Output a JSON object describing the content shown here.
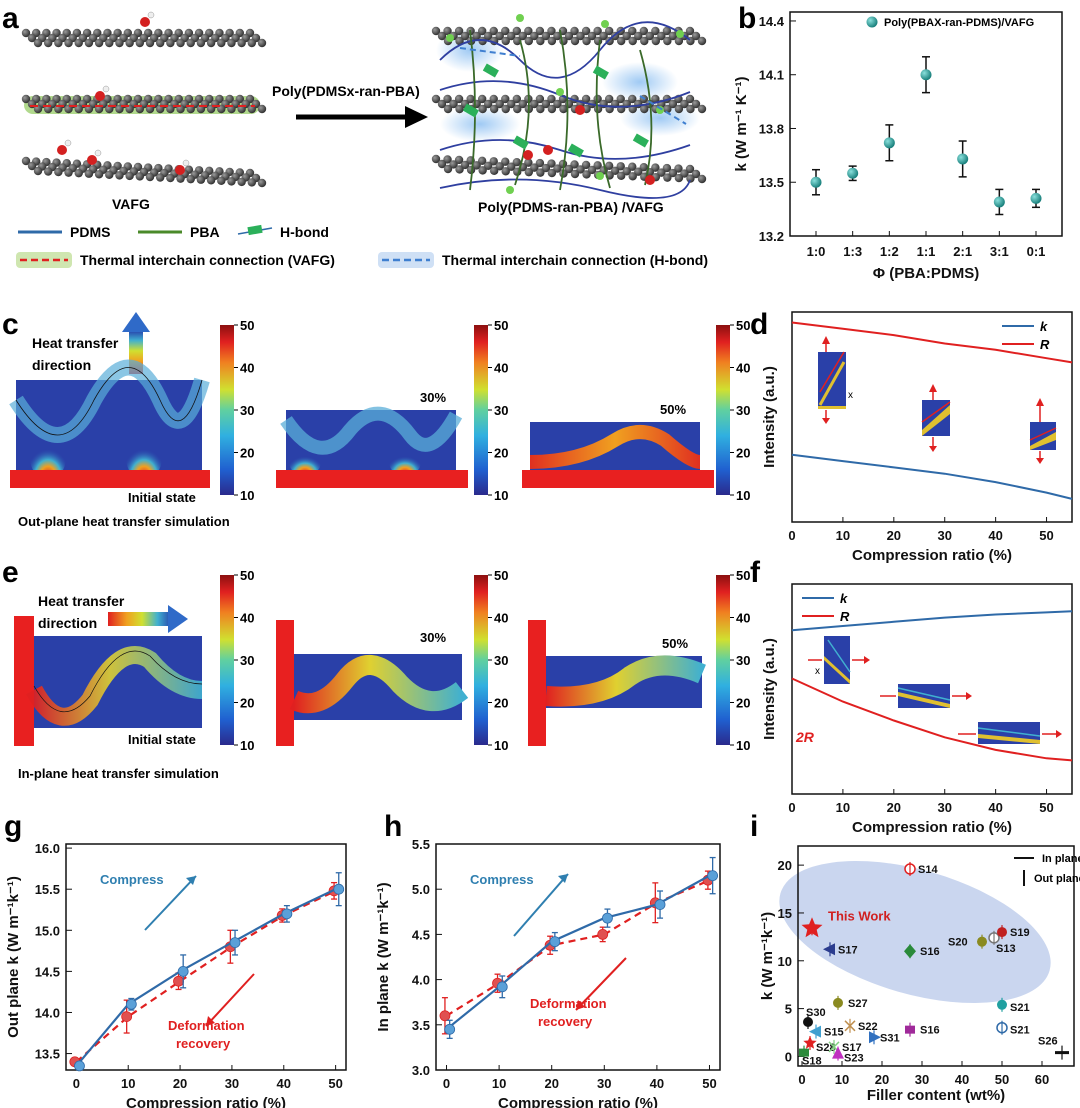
{
  "panel_labels": [
    "a",
    "b",
    "c",
    "d",
    "e",
    "f",
    "g",
    "h",
    "i"
  ],
  "colors": {
    "blue": "#2f6aa8",
    "teal": "#1a8c8a",
    "red": "#e02020",
    "green": "#4a8a2a",
    "navy": "#2b4a9e"
  },
  "panel_a": {
    "arrow_label": "Poly(PDMSx-ran-PBA)",
    "left_caption": "VAFG",
    "right_caption": "Poly(PDMS-ran-PBA) /VAFG",
    "legend": [
      "PDMS",
      "PBA",
      "H-bond",
      "Thermal interchain connection (VAFG)",
      "Thermal interchain connection (H-bond)"
    ]
  },
  "panel_c": {
    "heat_label_1": "Heat transfer",
    "heat_label_2": "direction",
    "state_labels": [
      "Initial state",
      "30%",
      "50%"
    ],
    "caption": "Out-plane heat transfer simulation",
    "colorbar_ticks": [
      "50",
      "40",
      "30",
      "20",
      "10"
    ]
  },
  "panel_e": {
    "heat_label_1": "Heat transfer",
    "heat_label_2": "direction",
    "state_labels": [
      "Initial state",
      "30%",
      "50%"
    ],
    "caption": "In-plane heat transfer simulation",
    "colorbar_ticks": [
      "50",
      "40",
      "30",
      "20",
      "10"
    ]
  },
  "chart_data": [
    {
      "panel": "b",
      "type": "scatter",
      "categories": [
        "1:0",
        "1:3",
        "1:2",
        "1:1",
        "2:1",
        "3:1",
        "0:1"
      ],
      "series": [
        {
          "name": "Poly(PBAX-ran-PDMS)/VAFG",
          "values": [
            13.5,
            13.55,
            13.72,
            14.1,
            13.63,
            13.39,
            13.41
          ],
          "errors": [
            0.07,
            0.04,
            0.1,
            0.1,
            0.1,
            0.07,
            0.05
          ]
        }
      ],
      "xlabel": "Φ (PBA:PDMS)",
      "ylabel": "k (W m⁻¹ K⁻¹)",
      "ylim": [
        13.2,
        14.45
      ],
      "yticks": [
        "13.2",
        "13.5",
        "13.8",
        "14.1",
        "14.4"
      ],
      "legend_position": "top-right"
    },
    {
      "panel": "d",
      "type": "line",
      "x": [
        0,
        10,
        20,
        30,
        40,
        50,
        55
      ],
      "series": [
        {
          "name": "k",
          "values": [
            0.32,
            0.29,
            0.26,
            0.23,
            0.19,
            0.14,
            0.11
          ]
        },
        {
          "name": "R",
          "values": [
            0.95,
            0.92,
            0.89,
            0.85,
            0.82,
            0.78,
            0.76
          ]
        }
      ],
      "xlabel": "Compression ratio (%)",
      "ylabel": "Intensity (a.u.)",
      "xticks": [
        "0",
        "10",
        "20",
        "30",
        "40",
        "50"
      ],
      "xlim": [
        0,
        55
      ],
      "ylim": [
        0,
        1
      ],
      "legend_position": "top-right"
    },
    {
      "panel": "f",
      "type": "line",
      "x": [
        0,
        10,
        20,
        30,
        40,
        50,
        55
      ],
      "series": [
        {
          "name": "k",
          "values": [
            0.78,
            0.8,
            0.82,
            0.84,
            0.855,
            0.865,
            0.87
          ]
        },
        {
          "name": "R",
          "values": [
            0.55,
            0.44,
            0.35,
            0.27,
            0.21,
            0.17,
            0.16
          ]
        }
      ],
      "r_annotation": "2R",
      "xlabel": "Compression ratio (%)",
      "ylabel": "Intensity (a.u.)",
      "xticks": [
        "0",
        "10",
        "20",
        "30",
        "40",
        "50"
      ],
      "xlim": [
        0,
        55
      ],
      "ylim": [
        0,
        1
      ],
      "legend_position": "top-left"
    },
    {
      "panel": "g",
      "type": "line",
      "x": [
        0,
        10,
        20,
        30,
        40,
        50
      ],
      "series": [
        {
          "name": "Compress",
          "values": [
            13.35,
            14.1,
            14.5,
            14.85,
            15.2,
            15.5
          ],
          "errors": [
            0.04,
            0.07,
            0.2,
            0.15,
            0.1,
            0.2
          ]
        },
        {
          "name": "Deformation recovery",
          "values": [
            13.4,
            13.95,
            14.38,
            14.8,
            15.18,
            15.48
          ],
          "errors": [
            0.04,
            0.2,
            0.1,
            0.2,
            0.08,
            0.1
          ]
        }
      ],
      "annotations": [
        "Compress",
        "Deformation",
        "recovery"
      ],
      "xlabel": "Compression ratio (%)",
      "ylabel": "Out plane k (W m⁻¹k⁻¹)",
      "xticks": [
        "0",
        "10",
        "20",
        "30",
        "40",
        "50"
      ],
      "yticks": [
        "13.5",
        "14.0",
        "14.5",
        "15.0",
        "15.5",
        "16.0"
      ],
      "xlim": [
        -2,
        52
      ],
      "ylim": [
        13.3,
        16.05
      ]
    },
    {
      "panel": "h",
      "type": "line",
      "x": [
        0,
        10,
        20,
        30,
        40,
        50
      ],
      "series": [
        {
          "name": "Compress",
          "values": [
            3.45,
            3.92,
            4.42,
            4.68,
            4.83,
            5.15
          ],
          "errors": [
            0.1,
            0.12,
            0.1,
            0.1,
            0.15,
            0.2
          ]
        },
        {
          "name": "Deformation recovery",
          "values": [
            3.6,
            3.96,
            4.38,
            4.5,
            4.85,
            5.1
          ],
          "errors": [
            0.2,
            0.1,
            0.1,
            0.08,
            0.22,
            0.1
          ]
        }
      ],
      "annotations": [
        "Compress",
        "Deformation",
        "recovery"
      ],
      "xlabel": "Compression ratio (%)",
      "ylabel": "In plane k (W m⁻¹k⁻¹)",
      "xticks": [
        "0",
        "10",
        "20",
        "30",
        "40",
        "50"
      ],
      "yticks": [
        "3.0",
        "3.5",
        "4.0",
        "4.5",
        "5.0",
        "5.5"
      ],
      "xlim": [
        -2,
        52
      ],
      "ylim": [
        3.0,
        5.5
      ]
    },
    {
      "panel": "i",
      "type": "scatter",
      "xlabel": "Filler content (wt%)",
      "ylabel": "k (W m⁻¹k⁻¹)",
      "xticks": [
        "0",
        "10",
        "20",
        "30",
        "40",
        "50",
        "60"
      ],
      "yticks": [
        "0",
        "5",
        "10",
        "15",
        "20"
      ],
      "xlim": [
        -1,
        68
      ],
      "ylim": [
        -1,
        22
      ],
      "legend": [
        "In plane",
        "Out plane"
      ],
      "this_work_label": "This Work",
      "points": [
        {
          "label": "This Work",
          "x": 2.5,
          "y": 13.4,
          "color": "#e02020",
          "shape": "star"
        },
        {
          "label": "S14",
          "x": 27,
          "y": 19.6,
          "color": "#e02020",
          "shape": "circle-open"
        },
        {
          "label": "S17",
          "x": 7,
          "y": 11.2,
          "color": "#2b3c8e",
          "shape": "tri-left"
        },
        {
          "label": "S16",
          "x": 27,
          "y": 11,
          "color": "#2a8a3a",
          "shape": "diamond"
        },
        {
          "label": "S20",
          "x": 45,
          "y": 12,
          "color": "#8a8a20",
          "shape": "circle"
        },
        {
          "label": "S13",
          "x": 48,
          "y": 12.4,
          "color": "#777777",
          "shape": "circle-open"
        },
        {
          "label": "S19",
          "x": 50,
          "y": 13,
          "color": "#c02020",
          "shape": "circle"
        },
        {
          "label": "S27",
          "x": 9,
          "y": 5.6,
          "color": "#8a8a20",
          "shape": "circle"
        },
        {
          "label": "S21",
          "x": 50,
          "y": 5.4,
          "color": "#20a0a0",
          "shape": "circle"
        },
        {
          "label": "S21",
          "x": 50,
          "y": 3,
          "color": "#2f6aa8",
          "shape": "circle-open"
        },
        {
          "label": "S30",
          "x": 1.5,
          "y": 3.6,
          "color": "#111111",
          "shape": "circle"
        },
        {
          "label": "S15",
          "x": 3.5,
          "y": 2.6,
          "color": "#40a0d0",
          "shape": "tri-left"
        },
        {
          "label": "S22",
          "x": 12,
          "y": 3.2,
          "color": "#c09050",
          "shape": "cross"
        },
        {
          "label": "S16",
          "x": 27,
          "y": 2.8,
          "color": "#a02a9a",
          "shape": "square"
        },
        {
          "label": "S31",
          "x": 18,
          "y": 2,
          "color": "#3070c0",
          "shape": "tri-right"
        },
        {
          "label": "S28",
          "x": 2,
          "y": 1.4,
          "color": "#e02020",
          "shape": "star"
        },
        {
          "label": "S17",
          "x": 8,
          "y": 1,
          "color": "#80d080",
          "shape": "cross"
        },
        {
          "label": "S18",
          "x": 0.5,
          "y": 0.4,
          "color": "#2a8a3a",
          "shape": "square"
        },
        {
          "label": "S23",
          "x": 9,
          "y": 0.3,
          "color": "#c030c0",
          "shape": "tri-up"
        },
        {
          "label": "S26",
          "x": 65,
          "y": 0.4,
          "color": "#111111",
          "shape": "hbar"
        }
      ]
    }
  ]
}
